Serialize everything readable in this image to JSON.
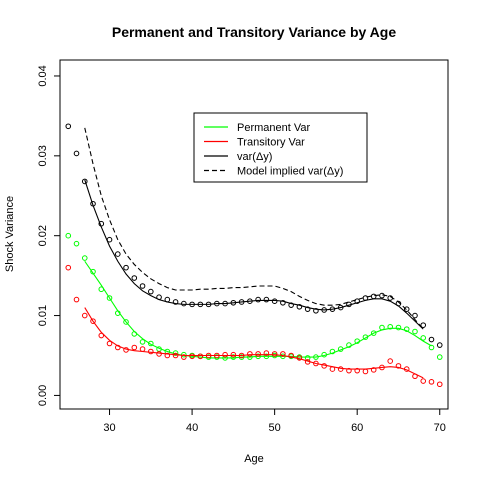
{
  "chart_data": {
    "type": "scatter",
    "title": "Permanent and Transitory Variance by Age",
    "xlabel": "Age",
    "ylabel": "Shock Variance",
    "xlim": [
      24,
      71
    ],
    "ylim": [
      -0.0017,
      0.042
    ],
    "x_ticks": [
      30,
      40,
      50,
      60,
      70
    ],
    "x_tick_labels": [
      "30",
      "40",
      "50",
      "60",
      "70"
    ],
    "y_ticks": [
      0,
      0.01,
      0.02,
      0.03,
      0.04
    ],
    "y_tick_labels": [
      "0.00",
      "0.01",
      "0.02",
      "0.03",
      "0.04"
    ],
    "grid": false,
    "legend": {
      "position": "top-right-inset",
      "entries": [
        {
          "label": "Permanent Var",
          "color": "#00ff00",
          "dash": "solid"
        },
        {
          "label": "Transitory Var",
          "color": "#ff0000",
          "dash": "solid"
        },
        {
          "label": "var(Δy)",
          "color": "#000000",
          "dash": "solid"
        },
        {
          "label": "Model implied var(Δy)",
          "color": "#000000",
          "dash": "dashed"
        }
      ]
    },
    "series": [
      {
        "name": "Permanent Var",
        "color": "#00ff00",
        "x": [
          25,
          26,
          27,
          28,
          29,
          30,
          31,
          32,
          33,
          34,
          35,
          36,
          37,
          38,
          39,
          40,
          41,
          42,
          43,
          44,
          45,
          46,
          47,
          48,
          49,
          50,
          51,
          52,
          53,
          54,
          55,
          56,
          57,
          58,
          59,
          60,
          61,
          62,
          63,
          64,
          65,
          66,
          67,
          68,
          69,
          70
        ],
        "points": [
          0.02,
          0.019,
          0.0172,
          0.0155,
          0.0133,
          0.0122,
          0.0103,
          0.0092,
          0.0077,
          0.0067,
          0.0065,
          0.0058,
          0.0055,
          0.0053,
          0.0051,
          0.005,
          0.0049,
          0.0048,
          0.0048,
          0.0047,
          0.0048,
          0.0048,
          0.0048,
          0.0049,
          0.0049,
          0.005,
          0.0049,
          0.0049,
          0.0048,
          0.0047,
          0.0048,
          0.0051,
          0.0055,
          0.0058,
          0.0063,
          0.0068,
          0.0073,
          0.0078,
          0.0085,
          0.0086,
          0.0085,
          0.0083,
          0.008,
          0.0072,
          0.006,
          0.0048
        ],
        "fit_x": [
          27,
          28,
          29,
          30,
          31,
          32,
          33,
          34,
          35,
          36,
          37,
          38,
          39,
          40,
          41,
          42,
          43,
          44,
          45,
          46,
          47,
          48,
          49,
          50,
          51,
          52,
          53,
          54,
          55,
          56,
          57,
          58,
          59,
          60,
          61,
          62,
          63,
          64,
          65,
          66,
          67,
          68,
          69
        ],
        "fit": [
          0.0168,
          0.0153,
          0.0138,
          0.0122,
          0.0106,
          0.0092,
          0.008,
          0.0071,
          0.0064,
          0.0059,
          0.0055,
          0.0052,
          0.005,
          0.0049,
          0.0048,
          0.0047,
          0.0047,
          0.0047,
          0.0047,
          0.0048,
          0.0048,
          0.0049,
          0.0049,
          0.0049,
          0.0049,
          0.0049,
          0.0048,
          0.0048,
          0.0048,
          0.005,
          0.0053,
          0.0057,
          0.0061,
          0.0066,
          0.0072,
          0.0078,
          0.0082,
          0.0084,
          0.0084,
          0.0081,
          0.0075,
          0.0068,
          0.0062
        ]
      },
      {
        "name": "Transitory Var",
        "color": "#ff0000",
        "x": [
          25,
          26,
          27,
          28,
          29,
          30,
          31,
          32,
          33,
          34,
          35,
          36,
          37,
          38,
          39,
          40,
          41,
          42,
          43,
          44,
          45,
          46,
          47,
          48,
          49,
          50,
          51,
          52,
          53,
          54,
          55,
          56,
          57,
          58,
          59,
          60,
          61,
          62,
          63,
          64,
          65,
          66,
          67,
          68,
          69,
          70
        ],
        "points": [
          0.016,
          0.012,
          0.01,
          0.0093,
          0.0075,
          0.0065,
          0.006,
          0.0057,
          0.006,
          0.0058,
          0.0055,
          0.0052,
          0.005,
          0.005,
          0.0048,
          0.0049,
          0.0049,
          0.005,
          0.005,
          0.0051,
          0.0051,
          0.005,
          0.0052,
          0.0052,
          0.0053,
          0.0052,
          0.0052,
          0.005,
          0.0047,
          0.0042,
          0.004,
          0.0037,
          0.0033,
          0.0033,
          0.0031,
          0.0031,
          0.003,
          0.0032,
          0.0035,
          0.0043,
          0.0037,
          0.0033,
          0.0024,
          0.0018,
          0.0017,
          0.0014
        ],
        "fit_x": [
          27,
          28,
          29,
          30,
          31,
          32,
          33,
          34,
          35,
          36,
          37,
          38,
          39,
          40,
          41,
          42,
          43,
          44,
          45,
          46,
          47,
          48,
          49,
          50,
          51,
          52,
          53,
          54,
          55,
          56,
          57,
          58,
          59,
          60,
          61,
          62,
          63,
          64,
          65,
          66,
          67,
          68
        ],
        "fit": [
          0.011,
          0.0093,
          0.0079,
          0.0069,
          0.0062,
          0.0058,
          0.0056,
          0.0055,
          0.0054,
          0.0053,
          0.0052,
          0.0051,
          0.005,
          0.005,
          0.005,
          0.005,
          0.005,
          0.005,
          0.005,
          0.005,
          0.0051,
          0.0051,
          0.0051,
          0.0051,
          0.005,
          0.0048,
          0.0046,
          0.0043,
          0.004,
          0.0038,
          0.0036,
          0.0034,
          0.0033,
          0.0033,
          0.0033,
          0.0034,
          0.0035,
          0.0036,
          0.0035,
          0.0032,
          0.0027,
          0.0022
        ]
      },
      {
        "name": "var(Δy)",
        "color": "#000000",
        "x": [
          25,
          26,
          27,
          28,
          29,
          30,
          31,
          32,
          33,
          34,
          35,
          36,
          37,
          38,
          39,
          40,
          41,
          42,
          43,
          44,
          45,
          46,
          47,
          48,
          49,
          50,
          51,
          52,
          53,
          54,
          55,
          56,
          57,
          58,
          59,
          60,
          61,
          62,
          63,
          64,
          65,
          66,
          67,
          68,
          69,
          70
        ],
        "points": [
          0.0337,
          0.0303,
          0.0268,
          0.024,
          0.0215,
          0.0195,
          0.0177,
          0.016,
          0.0147,
          0.0137,
          0.013,
          0.0123,
          0.012,
          0.0117,
          0.0115,
          0.0114,
          0.0114,
          0.0114,
          0.0115,
          0.0115,
          0.0116,
          0.0117,
          0.0118,
          0.012,
          0.012,
          0.0118,
          0.0116,
          0.0113,
          0.0111,
          0.0108,
          0.0106,
          0.0107,
          0.0108,
          0.011,
          0.0114,
          0.0118,
          0.0122,
          0.0124,
          0.0125,
          0.0122,
          0.0115,
          0.0108,
          0.01,
          0.0088,
          0.007,
          0.0063
        ],
        "fit_x": [
          27,
          28,
          29,
          30,
          31,
          32,
          33,
          34,
          35,
          36,
          37,
          38,
          39,
          40,
          41,
          42,
          43,
          44,
          45,
          46,
          47,
          48,
          49,
          50,
          51,
          52,
          53,
          54,
          55,
          56,
          57,
          58,
          59,
          60,
          61,
          62,
          63,
          64,
          65,
          66,
          67,
          68
        ],
        "fit": [
          0.027,
          0.0238,
          0.0211,
          0.0187,
          0.0168,
          0.0152,
          0.014,
          0.0131,
          0.0125,
          0.012,
          0.0117,
          0.0115,
          0.0114,
          0.0114,
          0.0114,
          0.0114,
          0.0115,
          0.0115,
          0.0116,
          0.0117,
          0.0118,
          0.0119,
          0.0119,
          0.0119,
          0.0118,
          0.0115,
          0.0113,
          0.011,
          0.0108,
          0.0107,
          0.0108,
          0.011,
          0.0113,
          0.0116,
          0.0119,
          0.0121,
          0.0121,
          0.0118,
          0.0112,
          0.0103,
          0.0093,
          0.0083
        ]
      },
      {
        "name": "Model implied var(Δy)",
        "color": "#000000",
        "dash": "dashed",
        "x": [
          27,
          28,
          29,
          30,
          31,
          32,
          33,
          34,
          35,
          36,
          37,
          38,
          39,
          40,
          41,
          42,
          43,
          44,
          45,
          46,
          47,
          48,
          49,
          50,
          51,
          52,
          53,
          54,
          55,
          56,
          57,
          58,
          59,
          60,
          61,
          62,
          63,
          64,
          65,
          66,
          67,
          68
        ],
        "fit": [
          0.0335,
          0.029,
          0.025,
          0.022,
          0.0195,
          0.0177,
          0.0164,
          0.0154,
          0.0146,
          0.014,
          0.0135,
          0.0132,
          0.0132,
          0.0132,
          0.0133,
          0.0133,
          0.0134,
          0.0134,
          0.0135,
          0.0135,
          0.0136,
          0.0137,
          0.0137,
          0.0137,
          0.0134,
          0.013,
          0.0124,
          0.0119,
          0.0115,
          0.0113,
          0.0113,
          0.0114,
          0.0117,
          0.012,
          0.0123,
          0.0125,
          0.0126,
          0.0124,
          0.0117,
          0.0107,
          0.0095,
          0.0083
        ]
      }
    ]
  }
}
